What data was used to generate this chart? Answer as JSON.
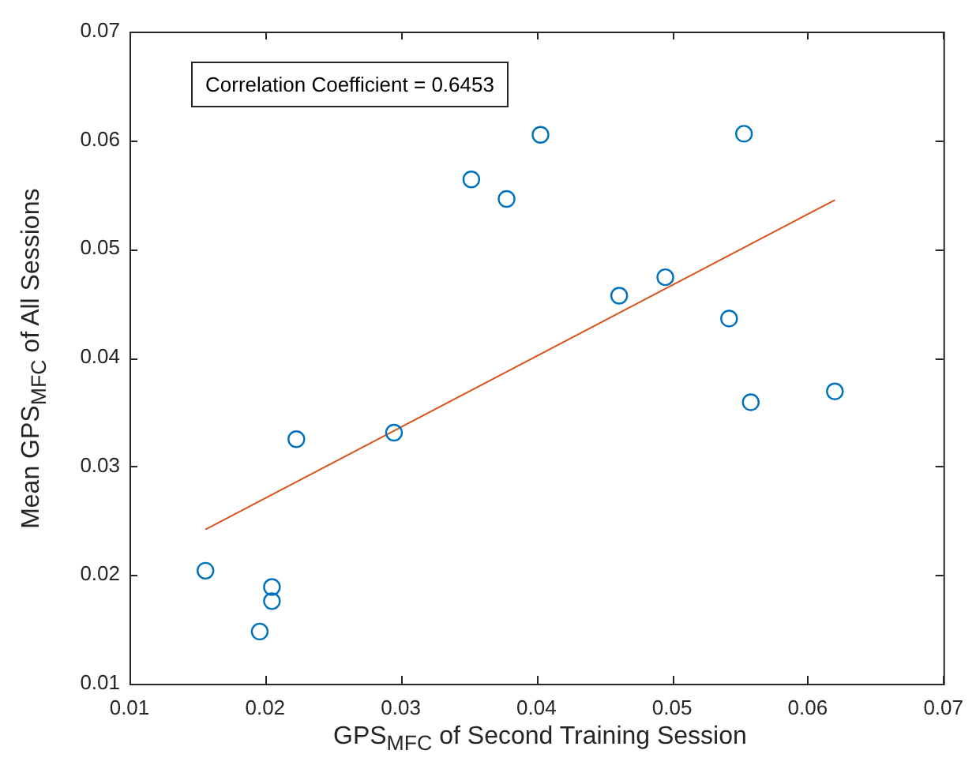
{
  "chart_data": {
    "type": "scatter",
    "xlabel": "GPS$_{MFC}$ of Second Training Session",
    "ylabel": "Mean GPS$_{MFC}$ of All Sessions",
    "annotations": [
      "Correlation Coefficient = 0.6453"
    ],
    "xlim": [
      0.01,
      0.07
    ],
    "xticks": [
      0.01,
      0.02,
      0.03,
      0.04,
      0.05,
      0.06,
      0.07
    ],
    "ylim": [
      0.01,
      0.07
    ],
    "yticks": [
      0.01,
      0.02,
      0.03,
      0.04,
      0.05,
      0.06,
      0.07
    ],
    "grid": false,
    "legend": false,
    "series": [
      {
        "color": "#0072bd",
        "marker": "circle",
        "x": [
          0.0156,
          0.0205,
          0.0205,
          0.0196,
          0.0223,
          0.0295,
          0.0352,
          0.0378,
          0.0403,
          0.0461,
          0.0495,
          0.0542,
          0.0553,
          0.0558,
          0.062
        ],
        "values": [
          0.0204,
          0.0189,
          0.0176,
          0.0148,
          0.0325,
          0.0331,
          0.0564,
          0.0546,
          0.0605,
          0.0457,
          0.0474,
          0.0436,
          0.0606,
          0.0359,
          0.0369
        ]
      },
      {
        "type": "line",
        "color": "#d95319",
        "marker": "none",
        "line_style": "solid",
        "x": [
          0.0156,
          0.062
        ],
        "values": [
          0.0242,
          0.0545
        ]
      }
    ]
  }
}
